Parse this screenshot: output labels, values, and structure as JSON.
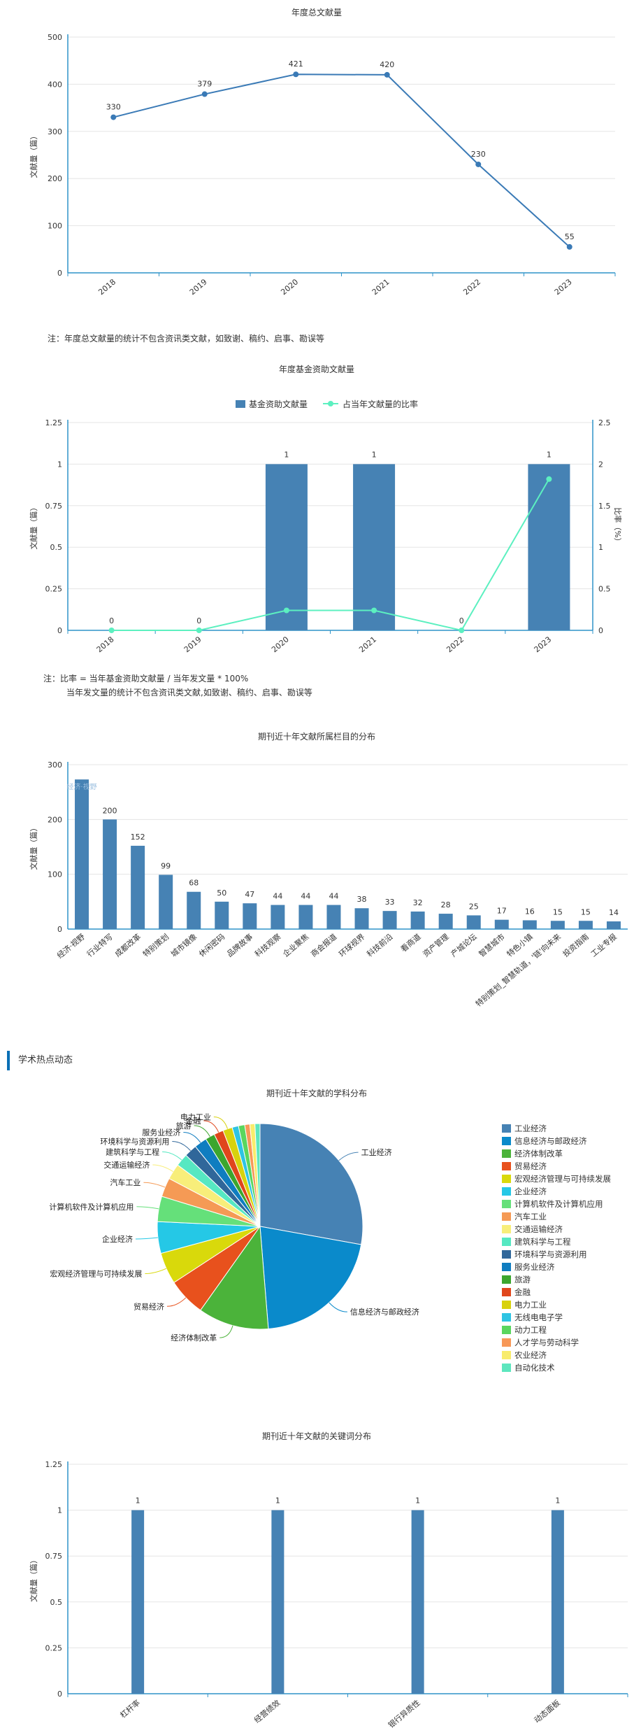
{
  "colors": {
    "bar": "#4682b4",
    "line": "#3a7ab6",
    "ratio_line": "#5cf0c0",
    "axis": "#2e93c9",
    "grid": "#e5e5e5",
    "section_bar": "#0a6fb5"
  },
  "notes": {
    "annual": "注：年度总文献量的统计不包含资讯类文献，如致谢、稿约、启事、勘误等",
    "fund_1": "注：比率 = 当年基金资助文献量 / 当年发文量 * 100%",
    "fund_2": "当年发文量的统计不包含资讯类文献,如致谢、稿约、启事、勘误等"
  },
  "section": {
    "title": "学术热点动态"
  },
  "chart_data": [
    {
      "id": "annual",
      "type": "line",
      "title": "年度总文献量",
      "ylabel": "文献量（篇）",
      "x": [
        "2018",
        "2019",
        "2020",
        "2021",
        "2022",
        "2023"
      ],
      "series": [
        {
          "values": [
            330,
            379,
            421,
            420,
            230,
            55
          ]
        }
      ],
      "ylim": [
        0,
        500
      ],
      "yticks": [
        0,
        100,
        200,
        300,
        400,
        500
      ],
      "grid": true
    },
    {
      "id": "fund",
      "type": "bar",
      "title": "年度基金资助文献量",
      "ylabel": "文献量（篇）",
      "y2label": "比率（%）",
      "categories": [
        "2018",
        "2019",
        "2020",
        "2021",
        "2022",
        "2023"
      ],
      "series": [
        {
          "name": "基金资助文献量",
          "type": "bar",
          "values": [
            0,
            0,
            1,
            1,
            0,
            1
          ]
        },
        {
          "name": "占当年文献量的比率",
          "type": "line",
          "values": [
            0,
            0,
            0.24,
            0.24,
            0,
            1.82
          ]
        }
      ],
      "ylim": [
        0,
        1.25
      ],
      "yticks": [
        "0",
        "0.25",
        "0.5",
        "0.75",
        "1",
        "1.25"
      ],
      "y2lim": [
        0,
        2.5
      ],
      "y2ticks": [
        "0",
        "0.5",
        "1",
        "1.5",
        "2",
        "2.5"
      ],
      "legend": "top"
    },
    {
      "id": "column",
      "type": "bar",
      "title": "期刊近十年文献所属栏目的分布",
      "ylabel": "文献量（篇）",
      "categories": [
        "经济·视野",
        "行业特写",
        "成都改革",
        "特别策划",
        "城市镜像",
        "休闲密码",
        "品牌故事",
        "科技观察",
        "企业聚焦",
        "商会报道",
        "环球视界",
        "科技前沿",
        "看商道",
        "资产管理",
        "产城论坛",
        "智慧城市",
        "特色小镇",
        "特别策划_智慧轨道，'链'向未来",
        "投资指南",
        "工业专报"
      ],
      "values": [
        273,
        200,
        152,
        99,
        68,
        50,
        47,
        44,
        44,
        44,
        38,
        33,
        32,
        28,
        25,
        17,
        16,
        15,
        15,
        14
      ],
      "data_labels": [
        "经济·视野",
        "200",
        "152",
        "99",
        "68",
        "50",
        "47",
        "44",
        "44",
        "44",
        "38",
        "33",
        "32",
        "28",
        "25",
        "17",
        "16",
        "15",
        "15",
        "14"
      ],
      "ylim": [
        0,
        300
      ],
      "yticks": [
        0,
        100,
        200,
        300
      ]
    },
    {
      "id": "subject",
      "type": "pie",
      "title": "期刊近十年文献的学科分布",
      "slices": [
        {
          "label": "工业经济",
          "value": 280,
          "color": "#4682b4"
        },
        {
          "label": "信息经济与邮政经济",
          "value": 210,
          "color": "#0a8acb"
        },
        {
          "label": "经济体制改革",
          "value": 112,
          "color": "#4bb33a"
        },
        {
          "label": "贸易经济",
          "value": 60,
          "color": "#e8511d"
        },
        {
          "label": "宏观经济管理与可持续发展",
          "value": 50,
          "color": "#d9d90b"
        },
        {
          "label": "企业经济",
          "value": 50,
          "color": "#25c8e6"
        },
        {
          "label": "计算机软件及计算机应用",
          "value": 40,
          "color": "#65e07a"
        },
        {
          "label": "汽车工业",
          "value": 30,
          "color": "#f59a55"
        },
        {
          "label": "交通运输经济",
          "value": 25,
          "color": "#f8ee7a"
        },
        {
          "label": "建筑科学与工程",
          "value": 20,
          "color": "#56e8c2"
        },
        {
          "label": "环境科学与资源利用",
          "value": 20,
          "color": "#30679a"
        },
        {
          "label": "服务业经济",
          "value": 20,
          "color": "#0f7dc0"
        },
        {
          "label": "旅游",
          "value": 15,
          "color": "#3ca62e"
        },
        {
          "label": "金融",
          "value": 15,
          "color": "#e0461c"
        },
        {
          "label": "电力工业",
          "value": 15,
          "color": "#d8d20d"
        },
        {
          "label": "无线电电子学",
          "value": 10,
          "color": "#2ec4e3"
        },
        {
          "label": "动力工程",
          "value": 10,
          "color": "#5ad65e"
        },
        {
          "label": "人才学与劳动科学",
          "value": 8,
          "color": "#f79858"
        },
        {
          "label": "农业经济",
          "value": 8,
          "color": "#f8ec6c"
        },
        {
          "label": "自动化技术",
          "value": 8,
          "color": "#5de6be"
        }
      ],
      "outer_labels": [
        "工业经济",
        "信息经济与邮政经济",
        "经济体制改革",
        "贸易经济",
        "宏观经济管理与可持续发展",
        "企业经济",
        "计算机软件及计算机应用",
        "汽车工业",
        "交通运输经济",
        "建筑科学与工程",
        "环境科学与资源利用",
        "服务业经济",
        "旅游",
        "金融",
        "电力工业"
      ],
      "legend": "right"
    },
    {
      "id": "keyword",
      "type": "bar",
      "title": "期刊近十年文献的关键词分布",
      "ylabel": "文献量（篇）",
      "categories": [
        "杠杆率",
        "经营绩效",
        "银行异质性",
        "动态面板"
      ],
      "values": [
        1,
        1,
        1,
        1
      ],
      "ylim": [
        0,
        1.25
      ],
      "yticks": [
        "0",
        "0.25",
        "0.5",
        "0.75",
        "1",
        "1.25"
      ]
    }
  ]
}
